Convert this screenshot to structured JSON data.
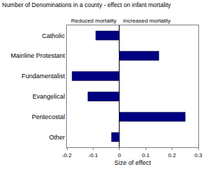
{
  "chart_data": {
    "type": "bar",
    "orientation": "horizontal",
    "title": "Number of Denominations in a county - effect on infant mortality",
    "x_label": "Size of effect",
    "annotations": [
      "Reduced mortality",
      "Increased mortality"
    ],
    "categories": [
      "Catholic",
      "Mainline Protestant",
      "Fundamentalist",
      "Evangelical",
      "Pentecostal",
      "Other"
    ],
    "values": [
      -0.09,
      0.15,
      -0.18,
      -0.12,
      0.25,
      -0.03
    ],
    "color": "#000080",
    "xlim": [
      -0.2,
      0.3
    ],
    "xticks": [
      -0.2,
      -0.1,
      0,
      0.1,
      0.2,
      0.3
    ],
    "grid": false
  }
}
